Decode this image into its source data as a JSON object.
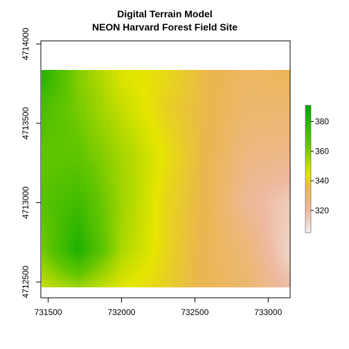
{
  "chart_data": {
    "type": "heatmap",
    "title": "Digital Terrain Model",
    "subtitle": "NEON Harvard Forest Field Site",
    "xlabel": "",
    "ylabel": "",
    "xlim": [
      731450,
      733150
    ],
    "ylim": [
      4712400,
      4714020
    ],
    "extent": {
      "xmin": 731453,
      "xmax": 733150,
      "ymin": 4712464,
      "ymax": 4713838
    },
    "x_ticks": [
      731500,
      732000,
      732500,
      733000
    ],
    "y_ticks": [
      4712500,
      4713000,
      4713500,
      4714000
    ],
    "x_tick_labels": [
      "731500",
      "732000",
      "732500",
      "733000"
    ],
    "y_tick_labels": [
      "4712500",
      "4713000",
      "4713500",
      "4714000"
    ],
    "legend": {
      "position": "right",
      "range": [
        305,
        391
      ],
      "ticks": [
        320,
        340,
        360,
        380
      ],
      "tick_labels": [
        "320",
        "340",
        "360",
        "380"
      ]
    },
    "colors": [
      "#F2F2F2",
      "#EEB99F",
      "#EAB64E",
      "#E6E600",
      "#63C600",
      "#00A600"
    ],
    "color_stops": [
      305,
      320,
      336,
      345,
      365,
      391
    ],
    "grid": false,
    "surface_samples": {
      "x": [
        731453,
        731700,
        732000,
        732300,
        732600,
        732850,
        733150
      ],
      "y": [
        4713838,
        4713600,
        4713300,
        4713000,
        4712700,
        4712464
      ],
      "z": [
        [
          382,
          360,
          346,
          343,
          336,
          332,
          334
        ],
        [
          372,
          362,
          350,
          341,
          336,
          330,
          330
        ],
        [
          366,
          366,
          355,
          344,
          335,
          326,
          324
        ],
        [
          368,
          374,
          356,
          342,
          335,
          322,
          315
        ],
        [
          362,
          383,
          354,
          342,
          334,
          328,
          312
        ],
        [
          350,
          356,
          346,
          341,
          334,
          330,
          318
        ]
      ]
    }
  }
}
